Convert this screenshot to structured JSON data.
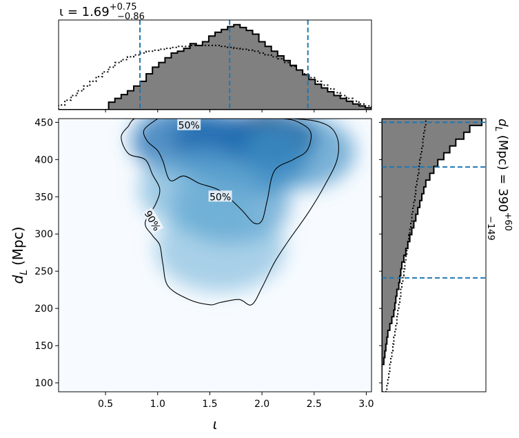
{
  "chart_data": [
    {
      "type": "heatmap",
      "panel": "joint",
      "xlabel": "ι",
      "ylabel_base": "d",
      "ylabel_sub": "L",
      "ylabel_unit": "(Mpc)",
      "xlim": [
        0.05,
        3.05
      ],
      "ylim": [
        88,
        455
      ],
      "xticks": [
        "0.5",
        "1.0",
        "1.5",
        "2.0",
        "2.5",
        "3.0"
      ],
      "yticks": [
        "100",
        "150",
        "200",
        "250",
        "300",
        "350",
        "400",
        "450"
      ],
      "colormap": "Blues",
      "density_peaks": [
        {
          "x": 2.1,
          "y": 428,
          "w": 1.0
        },
        {
          "x": 1.6,
          "y": 420,
          "w": 0.85
        },
        {
          "x": 1.25,
          "y": 425,
          "w": 0.7
        },
        {
          "x": 1.9,
          "y": 400,
          "w": 0.6
        },
        {
          "x": 1.7,
          "y": 340,
          "w": 0.45
        },
        {
          "x": 1.4,
          "y": 360,
          "w": 0.4
        },
        {
          "x": 2.35,
          "y": 410,
          "w": 0.55
        },
        {
          "x": 1.6,
          "y": 280,
          "w": 0.25
        }
      ],
      "contours": [
        {
          "label": "50%",
          "points": [
            [
              1.0,
              455
            ],
            [
              0.87,
              440
            ],
            [
              0.9,
              425
            ],
            [
              1.0,
              412
            ],
            [
              1.05,
              398
            ],
            [
              1.12,
              372
            ],
            [
              1.25,
              378
            ],
            [
              1.4,
              368
            ],
            [
              1.6,
              358
            ],
            [
              1.8,
              333
            ],
            [
              1.92,
              315
            ],
            [
              2.0,
              318
            ],
            [
              2.05,
              345
            ],
            [
              2.12,
              385
            ],
            [
              2.3,
              400
            ],
            [
              2.43,
              412
            ],
            [
              2.47,
              435
            ],
            [
              2.38,
              448
            ],
            [
              2.2,
              455
            ],
            [
              1.7,
              456
            ],
            [
              1.2,
              456
            ],
            [
              1.0,
              455
            ]
          ]
        },
        {
          "label": "90%",
          "points": [
            [
              0.72,
              445
            ],
            [
              0.65,
              430
            ],
            [
              0.72,
              408
            ],
            [
              0.88,
              400
            ],
            [
              0.95,
              380
            ],
            [
              1.02,
              360
            ],
            [
              0.98,
              340
            ],
            [
              0.88,
              315
            ],
            [
              0.95,
              298
            ],
            [
              1.02,
              285
            ],
            [
              1.05,
              260
            ],
            [
              1.1,
              230
            ],
            [
              1.3,
              212
            ],
            [
              1.5,
              205
            ],
            [
              1.6,
              208
            ],
            [
              1.78,
              212
            ],
            [
              1.9,
              205
            ],
            [
              2.0,
              228
            ],
            [
              2.12,
              262
            ],
            [
              2.25,
              290
            ],
            [
              2.45,
              330
            ],
            [
              2.6,
              365
            ],
            [
              2.72,
              400
            ],
            [
              2.72,
              430
            ],
            [
              2.6,
              448
            ],
            [
              2.3,
              455
            ],
            [
              1.6,
              458
            ],
            [
              0.95,
              458
            ],
            [
              0.78,
              455
            ],
            [
              0.72,
              445
            ]
          ]
        }
      ]
    },
    {
      "type": "bar",
      "panel": "top-marginal",
      "title": "ι = 1.69",
      "title_sup": "+0.75",
      "title_sub": "−0.86",
      "x_edges_range": [
        0.05,
        3.05
      ],
      "bins": 50,
      "series": [
        {
          "style": "filled",
          "values": [
            0,
            0,
            0,
            0,
            0,
            0,
            0,
            0,
            0.08,
            0.12,
            0.16,
            0.2,
            0.25,
            0.3,
            0.38,
            0.45,
            0.5,
            0.55,
            0.6,
            0.62,
            0.65,
            0.7,
            0.68,
            0.72,
            0.78,
            0.82,
            0.85,
            0.88,
            0.9,
            0.87,
            0.84,
            0.8,
            0.72,
            0.67,
            0.62,
            0.57,
            0.52,
            0.47,
            0.42,
            0.37,
            0.32,
            0.27,
            0.23,
            0.19,
            0.15,
            0.12,
            0.09,
            0.06,
            0.04,
            0.02
          ]
        },
        {
          "style": "dotted",
          "values": [
            0.05,
            0.1,
            0.15,
            0.2,
            0.25,
            0.3,
            0.35,
            0.4,
            0.45,
            0.5,
            0.53,
            0.56,
            0.58,
            0.6,
            0.62,
            0.63,
            0.64,
            0.65,
            0.66,
            0.67,
            0.67,
            0.68,
            0.68,
            0.68,
            0.68,
            0.68,
            0.67,
            0.66,
            0.65,
            0.64,
            0.63,
            0.62,
            0.6,
            0.58,
            0.56,
            0.54,
            0.5,
            0.46,
            0.42,
            0.38,
            0.34,
            0.3,
            0.26,
            0.22,
            0.18,
            0.15,
            0.12,
            0.09,
            0.06,
            0.04
          ]
        }
      ],
      "vlines": [
        0.83,
        1.69,
        2.44
      ]
    },
    {
      "type": "bar",
      "panel": "right-marginal",
      "orientation": "horizontal",
      "title_base": "d",
      "title_sub": "L",
      "title_mid": "(Mpc) = 390",
      "title_sup": "+60",
      "title_low": "−149",
      "y_edges_range": [
        88,
        455
      ],
      "bins": 40,
      "series": [
        {
          "style": "filled",
          "values": [
            0,
            0,
            0,
            0,
            0.02,
            0.03,
            0.04,
            0.05,
            0.06,
            0.08,
            0.1,
            0.12,
            0.13,
            0.14,
            0.15,
            0.17,
            0.18,
            0.19,
            0.2,
            0.22,
            0.24,
            0.26,
            0.28,
            0.3,
            0.32,
            0.34,
            0.36,
            0.38,
            0.4,
            0.42,
            0.44,
            0.48,
            0.52,
            0.56,
            0.62,
            0.68,
            0.74,
            0.82,
            0.88,
            1.0
          ]
        },
        {
          "style": "dotted",
          "values": [
            0.05,
            0.06,
            0.07,
            0.08,
            0.09,
            0.1,
            0.11,
            0.12,
            0.13,
            0.14,
            0.15,
            0.16,
            0.17,
            0.18,
            0.19,
            0.2,
            0.21,
            0.22,
            0.23,
            0.24,
            0.25,
            0.26,
            0.27,
            0.28,
            0.29,
            0.3,
            0.31,
            0.32,
            0.33,
            0.34,
            0.35,
            0.36,
            0.37,
            0.38,
            0.39,
            0.4,
            0.41,
            0.42,
            0.43,
            0.44
          ]
        }
      ],
      "hlines": [
        241,
        390,
        450
      ]
    }
  ],
  "colors": {
    "hist_fill": "#808080",
    "hist_edge": "#000000",
    "median_line": "#1f77b4",
    "contour": "#000000"
  }
}
